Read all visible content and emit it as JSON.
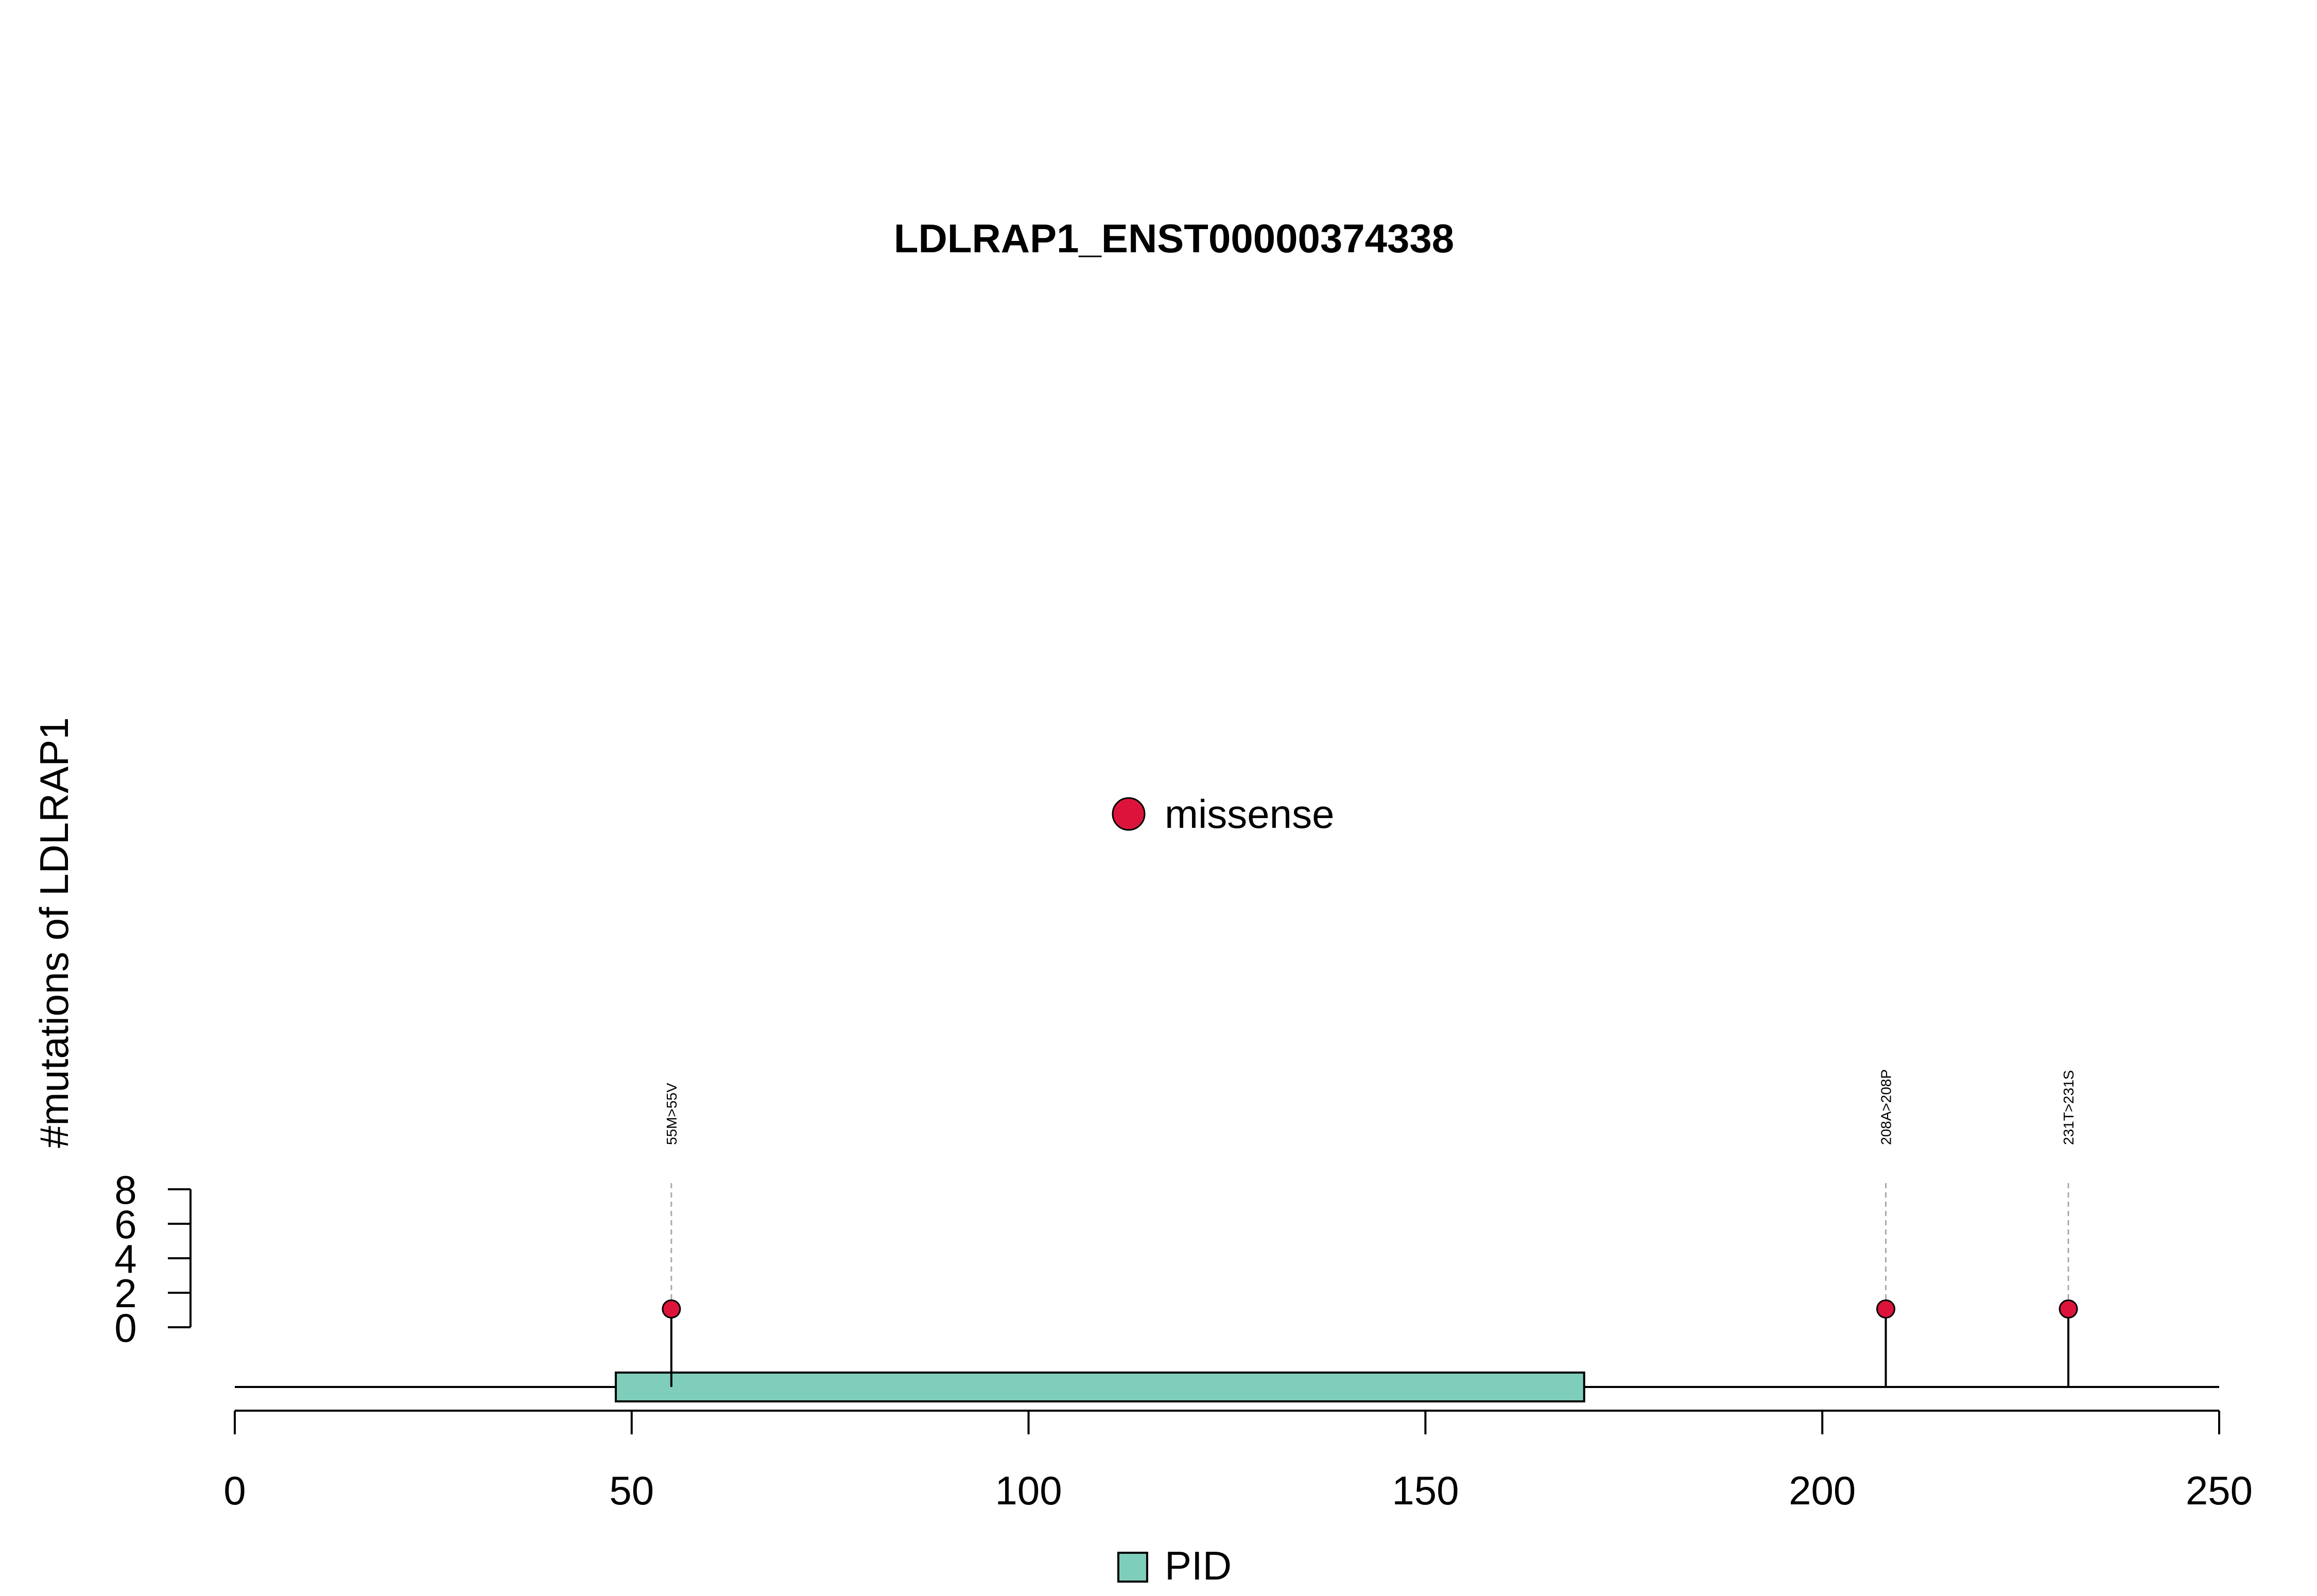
{
  "chart_data": {
    "type": "lollipop",
    "title": "LDLRAP1_ENST00000374338",
    "ylabel": "#mutations of LDLRAP1",
    "xlabel": "",
    "xlim": [
      0,
      250
    ],
    "x_ticks": [
      0,
      50,
      100,
      150,
      200,
      250
    ],
    "ylim": [
      0,
      8
    ],
    "y_ticks": [
      0,
      2,
      4,
      6,
      8
    ],
    "grid": false,
    "legend_top": {
      "label": "missense",
      "color": "#DC143C"
    },
    "mutations": [
      {
        "position": 55,
        "count": 1,
        "label": "55M>55V",
        "type": "missense"
      },
      {
        "position": 208,
        "count": 1,
        "label": "208A>208P",
        "type": "missense"
      },
      {
        "position": 231,
        "count": 1,
        "label": "231T>231S",
        "type": "missense"
      }
    ],
    "domains": [
      {
        "name": "PID",
        "start": 48,
        "end": 170,
        "color": "#7FCDBB"
      }
    ],
    "legend_bottom": {
      "label": "PID",
      "color": "#7FCDBB"
    }
  }
}
